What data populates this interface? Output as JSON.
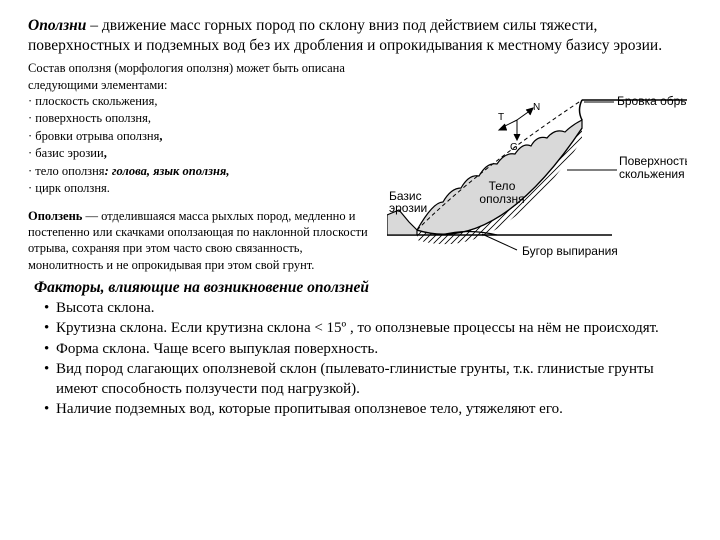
{
  "definition": {
    "term": "Оползни",
    "text": " – движение масс горных пород по склону вниз под действием силы тяжести, поверхностных и подземных вод без их дробления и опрокидывания к местному базису эрозии."
  },
  "morphology": {
    "intro": "Состав оползня (морфология оползня) может быть описана следующими элементами:",
    "items": [
      {
        "pre": "· ",
        "text": "плоскость скольжения,",
        "comma": ""
      },
      {
        "pre": "· ",
        "text": "поверхность оползня,",
        "comma": ""
      },
      {
        "pre": "· ",
        "text": "бровки отрыва оползня",
        "comma": ","
      },
      {
        "pre": "· ",
        "text": "базис эрозии",
        "comma": ","
      },
      {
        "pre": "· ",
        "text": "тело оползня",
        "post_italic": ": голова, язык оползня,"
      },
      {
        "pre": "· ",
        "text": "цирк оползня."
      }
    ]
  },
  "opolzen": {
    "term": "Оползень",
    "text": " — отделившаяся масса рыхлых пород, медленно и постепенно или скачками оползающая по наклонной плоскости отрыва, сохраняя при этом часто свою связанность, монолитность и не опрокидывая при этом свой грунт."
  },
  "diagram": {
    "labels": {
      "brovka": "Бровка обрыва",
      "poverh": "Поверхность скольжения",
      "bugor": "Бугор выпирания",
      "bazis1": "Базис",
      "bazis2": "эрозии",
      "telo1": "Тело",
      "telo2": "оползня",
      "T": "T",
      "N": "N",
      "G": "G"
    },
    "colors": {
      "stroke": "#000000",
      "fill_body": "#d9d9d9",
      "fill_paper": "#ffffff",
      "dash": "4,3"
    }
  },
  "factors": {
    "title": "Факторы, влияющие на возникновение оползней",
    "items": [
      "Высота склона.",
      "Крутизна склона. Если крутизна склона < 15º , то оползневые процессы на нём не происходят.",
      "Форма склона. Чаще всего выпуклая поверхность.",
      "Вид пород слагающих оползневой склон (пылевато-глинистые грунты, т.к. глинистые грунты имеют способность ползучести под нагрузкой).",
      "Наличие подземных вод, которые пропитывая оползневое тело, утяжеляют его."
    ]
  }
}
